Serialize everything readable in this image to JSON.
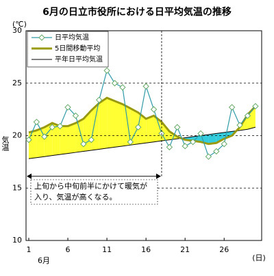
{
  "chart_data": {
    "type": "line",
    "title": "6月の日立市役所における日平均気温の推移",
    "y_unit": "(℃)",
    "ylabel": "気温",
    "x_unit": "(日)",
    "x_month": "6月",
    "x": [
      1,
      2,
      3,
      4,
      5,
      6,
      7,
      8,
      9,
      10,
      11,
      12,
      13,
      14,
      15,
      16,
      17,
      18,
      19,
      20,
      21,
      22,
      23,
      24,
      25,
      26,
      27,
      28,
      29,
      30
    ],
    "xlim": [
      0.65,
      30.8
    ],
    "xticks": [
      1,
      6,
      11,
      16,
      21,
      26
    ],
    "ylim": [
      10,
      30
    ],
    "yticks": [
      10,
      15,
      20,
      25,
      30
    ],
    "grid": true,
    "series": [
      {
        "name": "日平均気温",
        "color": "#2e9aa8",
        "marker_color": "#66aa66",
        "values": [
          19.6,
          21.3,
          19.9,
          20.8,
          20.9,
          22.7,
          21.9,
          19.2,
          19.6,
          23.4,
          26.2,
          25.0,
          24.6,
          19.4,
          20.8,
          24.7,
          22.5,
          20.2,
          18.9,
          20.8,
          19.0,
          19.4,
          20.2,
          18.0,
          18.5,
          19.2,
          22.7,
          21.0,
          21.9,
          22.8
        ]
      },
      {
        "name": "5日間移動平均",
        "color": "#9a9a10",
        "values": [
          20.3,
          20.5,
          20.8,
          21.2,
          20.9,
          20.9,
          21.2,
          21.6,
          22.4,
          23.1,
          23.6,
          23.3,
          23.0,
          22.6,
          22.2,
          21.6,
          21.9,
          21.3,
          20.4,
          19.9,
          19.6,
          19.5,
          19.4,
          19.2,
          19.3,
          19.7,
          20.0,
          20.8,
          22.0,
          22.8
        ]
      },
      {
        "name": "平年日平均気温",
        "color": "#000000",
        "values": [
          17.8,
          17.9,
          18.0,
          18.1,
          18.2,
          18.3,
          18.4,
          18.5,
          18.6,
          18.7,
          18.8,
          18.9,
          19.0,
          19.1,
          19.2,
          19.3,
          19.4,
          19.5,
          19.6,
          19.7,
          19.8,
          19.9,
          20.0,
          20.1,
          20.2,
          20.3,
          20.4,
          20.5,
          20.6,
          20.8
        ]
      }
    ],
    "fill_above_color": "#ffff33",
    "fill_below_color": "#33ccdd",
    "annotation": [
      "上旬から中旬前半にかけて暖気が",
      "入り、気温が高くなる。"
    ]
  }
}
